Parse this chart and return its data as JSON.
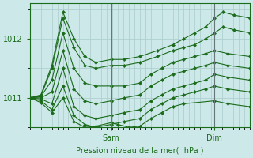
{
  "background_color": "#cce8e8",
  "grid_color": "#aacccc",
  "line_color": "#1a6b1a",
  "marker_color": "#1a6b1a",
  "xlabel": "Pression niveau de la mer(  hPa )",
  "yticks": [
    1011,
    1012
  ],
  "ylim": [
    1010.5,
    1012.6
  ],
  "xlim": [
    0.0,
    1.0
  ],
  "xtick_positions": [
    0.37,
    0.84
  ],
  "xtick_labels": [
    "Sam",
    "Dim"
  ],
  "figsize": [
    3.2,
    2.0
  ],
  "dpi": 100,
  "series": [
    {
      "x": [
        0.0,
        0.05,
        0.1,
        0.15,
        0.2,
        0.25,
        0.3,
        0.37,
        0.43,
        0.5,
        0.58,
        0.65,
        0.7,
        0.75,
        0.8,
        0.84,
        0.88,
        0.93,
        1.0
      ],
      "y": [
        1011.0,
        1011.05,
        1011.55,
        1012.45,
        1012.0,
        1011.7,
        1011.6,
        1011.65,
        1011.65,
        1011.7,
        1011.8,
        1011.9,
        1012.0,
        1012.1,
        1012.2,
        1012.35,
        1012.45,
        1012.4,
        1012.35
      ]
    },
    {
      "x": [
        0.0,
        0.05,
        0.1,
        0.15,
        0.2,
        0.25,
        0.3,
        0.37,
        0.43,
        0.5,
        0.58,
        0.65,
        0.7,
        0.75,
        0.8,
        0.84,
        0.88,
        0.93,
        1.0
      ],
      "y": [
        1011.0,
        1011.03,
        1011.5,
        1012.35,
        1011.85,
        1011.55,
        1011.5,
        1011.55,
        1011.55,
        1011.6,
        1011.7,
        1011.8,
        1011.85,
        1011.9,
        1012.0,
        1012.1,
        1012.2,
        1012.15,
        1012.1
      ]
    },
    {
      "x": [
        0.0,
        0.05,
        0.1,
        0.15,
        0.2,
        0.25,
        0.3,
        0.37,
        0.43,
        0.5,
        0.55,
        0.6,
        0.65,
        0.7,
        0.75,
        0.8,
        0.84,
        0.9,
        1.0
      ],
      "y": [
        1011.0,
        1011.02,
        1011.3,
        1012.1,
        1011.5,
        1011.25,
        1011.2,
        1011.2,
        1011.2,
        1011.25,
        1011.4,
        1011.5,
        1011.6,
        1011.65,
        1011.7,
        1011.75,
        1011.8,
        1011.75,
        1011.7
      ]
    },
    {
      "x": [
        0.0,
        0.05,
        0.1,
        0.15,
        0.2,
        0.25,
        0.3,
        0.37,
        0.43,
        0.5,
        0.55,
        0.6,
        0.65,
        0.7,
        0.75,
        0.8,
        0.84,
        0.9,
        1.0
      ],
      "y": [
        1011.0,
        1011.0,
        1011.1,
        1011.8,
        1011.15,
        1010.95,
        1010.9,
        1010.95,
        1011.0,
        1011.05,
        1011.2,
        1011.3,
        1011.4,
        1011.45,
        1011.5,
        1011.55,
        1011.6,
        1011.55,
        1011.5
      ]
    },
    {
      "x": [
        0.0,
        0.05,
        0.1,
        0.15,
        0.2,
        0.25,
        0.3,
        0.37,
        0.43,
        0.5,
        0.55,
        0.6,
        0.65,
        0.7,
        0.75,
        0.8,
        0.84,
        0.9,
        1.0
      ],
      "y": [
        1011.0,
        1010.98,
        1010.9,
        1011.5,
        1010.85,
        1010.7,
        1010.65,
        1010.7,
        1010.75,
        1010.8,
        1010.95,
        1011.05,
        1011.15,
        1011.2,
        1011.25,
        1011.3,
        1011.4,
        1011.35,
        1011.3
      ]
    },
    {
      "x": [
        0.0,
        0.05,
        0.1,
        0.15,
        0.2,
        0.25,
        0.3,
        0.37,
        0.43,
        0.5,
        0.55,
        0.6,
        0.65,
        0.7,
        0.75,
        0.8,
        0.84,
        0.9,
        1.0
      ],
      "y": [
        1011.0,
        1010.95,
        1010.8,
        1011.2,
        1010.7,
        1010.55,
        1010.5,
        1010.55,
        1010.6,
        1010.65,
        1010.8,
        1010.9,
        1011.0,
        1011.05,
        1011.1,
        1011.15,
        1011.2,
        1011.15,
        1011.1
      ]
    },
    {
      "x": [
        0.0,
        0.05,
        0.1,
        0.15,
        0.2,
        0.25,
        0.3,
        0.37,
        0.4,
        0.45,
        0.5,
        0.55,
        0.6,
        0.65,
        0.7,
        0.84,
        0.9,
        1.0
      ],
      "y": [
        1011.0,
        1010.92,
        1010.75,
        1011.0,
        1010.6,
        1010.5,
        1010.52,
        1010.58,
        1010.55,
        1010.5,
        1010.52,
        1010.65,
        1010.75,
        1010.85,
        1010.9,
        1010.95,
        1010.9,
        1010.85
      ]
    }
  ],
  "vline_positions": [
    0.37,
    0.84
  ],
  "vline_color": "#667777"
}
